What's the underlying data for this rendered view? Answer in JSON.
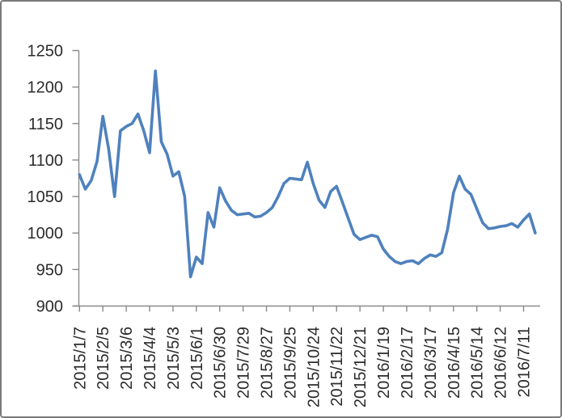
{
  "chart_data": {
    "type": "line",
    "title": "",
    "grid": "off",
    "legend": "none",
    "x_tick_labels": [
      "2015/1/7",
      "2015/2/5",
      "2015/3/6",
      "2015/4/4",
      "2015/5/3",
      "2015/6/1",
      "2015/6/30",
      "2015/7/29",
      "2015/8/27",
      "2015/9/25",
      "2015/10/24",
      "2015/11/22",
      "2015/12/21",
      "2016/1/19",
      "2016/2/17",
      "2016/3/17",
      "2016/4/15",
      "2016/5/14",
      "2016/6/12",
      "2016/7/11"
    ],
    "x_label_interval": 4,
    "n_points": 79,
    "values": [
      1080,
      1060,
      1072,
      1098,
      1160,
      1115,
      1050,
      1140,
      1146,
      1150,
      1163,
      1140,
      1110,
      1222,
      1125,
      1108,
      1078,
      1084,
      1050,
      940,
      967,
      958,
      1028,
      1008,
      1062,
      1044,
      1031,
      1025,
      1026,
      1027,
      1022,
      1023,
      1028,
      1035,
      1050,
      1068,
      1075,
      1074,
      1073,
      1097,
      1068,
      1045,
      1035,
      1057,
      1064,
      1042,
      1020,
      998,
      991,
      994,
      997,
      995,
      978,
      968,
      961,
      958,
      961,
      962,
      958,
      965,
      970,
      968,
      973,
      1005,
      1055,
      1078,
      1060,
      1053,
      1033,
      1014,
      1006,
      1007,
      1009,
      1010,
      1013,
      1008,
      1018,
      1026,
      1000
    ],
    "ylim": [
      900,
      1250
    ],
    "y_tick_step": 50,
    "y_tick_labels": [
      "900",
      "950",
      "1000",
      "1050",
      "1100",
      "1150",
      "1200",
      "1250"
    ],
    "colors": {
      "line": "#4F81BD",
      "axis": "#8A8A8A",
      "labels": "#2B2B2B",
      "frame_border": "#7A7A7A",
      "background": "#FFFFFF"
    }
  }
}
